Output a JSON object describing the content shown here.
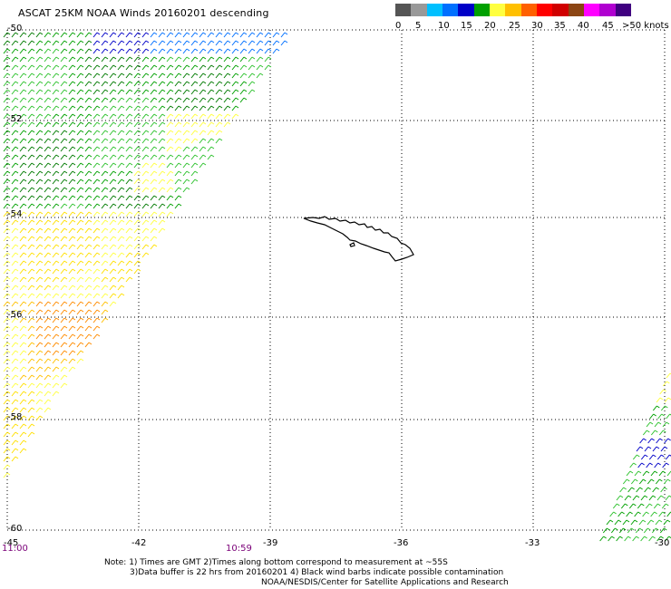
{
  "title": "ASCAT 25KM NOAA Winds 20160201 descending",
  "color_scale": {
    "colors": [
      "#555555",
      "#999999",
      "#00c0ff",
      "#0070ff",
      "#0000c8",
      "#00a000",
      "#ffff40",
      "#ffc000",
      "#ff6000",
      "#ff0000",
      "#d00000",
      "#8b4513",
      "#ff00ff",
      "#b000d0",
      "#400080"
    ],
    "labels": [
      "0",
      "5",
      "10",
      "15",
      "20",
      "25",
      "30",
      "35",
      "40",
      "45",
      ">50 knots"
    ]
  },
  "latitude_labels": [
    "-50",
    "-52",
    "-54",
    "-56",
    "-58",
    "-60"
  ],
  "longitude_labels": [
    "-45",
    "-42",
    "-39",
    "-36",
    "-33",
    "-30"
  ],
  "time_labels": [
    "11:00",
    "10:59"
  ],
  "notes": [
    "Note: 1) Times are GMT 2)Times along bottom correspond to measurement at ~55S",
    "3)Data buffer is 22 hrs from 20160201 4) Black wind barbs indicate possible contamination",
    "NOAA/NESDIS/Center for Satellite Applications and Research"
  ],
  "map": {
    "lat_range": [
      -60,
      -50
    ],
    "lon_range": [
      -45,
      -30
    ],
    "grid": "dotted",
    "feature": "South Georgia island outline"
  }
}
